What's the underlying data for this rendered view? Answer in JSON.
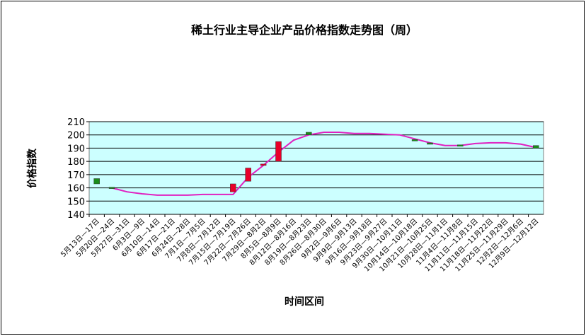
{
  "chart_data": {
    "type": "line",
    "title": "稀土行业主导企业产品价格指数走势图（周）",
    "y_label": "价格指数",
    "x_label": "时间区间",
    "categories": [
      "5月13日—17日",
      "5月20日—24日",
      "5月27日—31日",
      "6月3日—9日",
      "6月10日—14日",
      "6月17日—21日",
      "6月24日—28日",
      "7月1日—7月5日",
      "7月8日—7月12日",
      "7月15日—7月19日",
      "7月22日—7月26日",
      "7月29日—8月2日",
      "8月5日—8月9日",
      "8月12日—8月16日",
      "8月19日—8月23日",
      "8月26日—8月30日",
      "9月2日—9月6日",
      "9月9日—9月13日",
      "9月16日—9月18日",
      "9月23日—9月27日",
      "9月30日—10月11日",
      "10月14日—10月18日",
      "10月21日—10月25日",
      "10月28日—11月1日",
      "11月4日—11月8日",
      "11月11日—11月15日",
      "11月18日—11月22日",
      "11月25日—11月29日",
      "12月2日—12月6日",
      "12月9日—12月12日"
    ],
    "values": [
      null,
      160,
      157,
      155.5,
      154.5,
      154.5,
      154.5,
      155,
      155,
      155,
      168,
      177,
      187,
      196,
      200,
      202,
      202,
      201,
      201,
      200.5,
      200,
      197,
      194,
      192,
      192,
      193.5,
      194,
      194,
      193,
      190.5
    ],
    "line_color": "#e020c0",
    "open": [
      167,
      160.5,
      null,
      null,
      null,
      null,
      null,
      null,
      null,
      157,
      165,
      177,
      180,
      null,
      202,
      null,
      null,
      null,
      null,
      null,
      null,
      196.5,
      194,
      null,
      192.5,
      null,
      null,
      null,
      null,
      192
    ],
    "close": [
      163,
      159.5,
      null,
      null,
      null,
      null,
      null,
      null,
      null,
      163,
      175,
      178,
      195,
      null,
      200,
      null,
      null,
      null,
      null,
      null,
      null,
      196,
      193.5,
      null,
      192,
      null,
      null,
      null,
      null,
      190
    ],
    "up_color": "#e8002a",
    "down_color": "#1a8c1a",
    "ylim": [
      140,
      210
    ],
    "yticks": [
      140,
      150,
      160,
      170,
      180,
      190,
      200,
      210
    ],
    "grid": true,
    "plot_color": "#ccffff"
  }
}
